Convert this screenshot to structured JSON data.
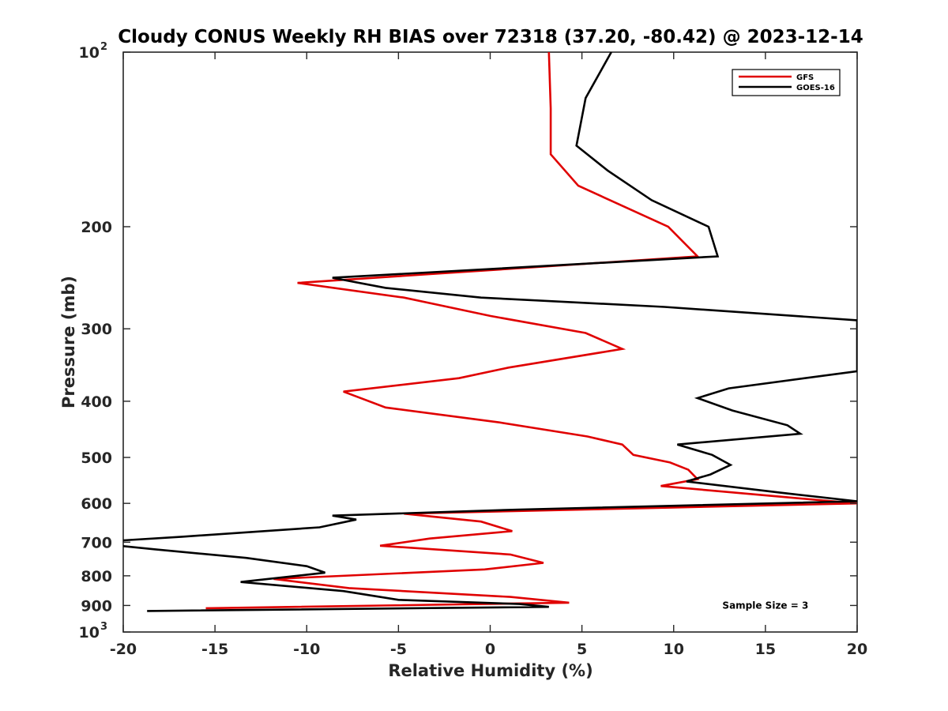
{
  "chart_data": {
    "type": "line",
    "title": "Cloudy CONUS Weekly RH BIAS over 72318 (37.20, -80.42) @ 2023-12-14",
    "xlabel": "Relative Humidity (%)",
    "ylabel": "Pressure (mb)",
    "xlim": [
      -20,
      20
    ],
    "ylim": [
      100,
      1000
    ],
    "y_scale": "log",
    "y_reversed": true,
    "grid": false,
    "legend_position": "top-right",
    "x_ticks": [
      -20,
      -15,
      -10,
      -5,
      0,
      5,
      10,
      15,
      20
    ],
    "x_tick_labels": [
      "-20",
      "-15",
      "-10",
      "-5",
      "0",
      "5",
      "10",
      "15",
      "20"
    ],
    "y_ticks": [
      {
        "value": 100,
        "base": "10",
        "exp": "2"
      },
      {
        "value": 200,
        "label": "200"
      },
      {
        "value": 300,
        "label": "300"
      },
      {
        "value": 400,
        "label": "400"
      },
      {
        "value": 500,
        "label": "500"
      },
      {
        "value": 600,
        "label": "600"
      },
      {
        "value": 700,
        "label": "700"
      },
      {
        "value": 800,
        "label": "800"
      },
      {
        "value": 900,
        "label": "900"
      },
      {
        "value": 1000,
        "base": "10",
        "exp": "3"
      }
    ],
    "series": [
      {
        "name": "GFS",
        "color": "#e00000",
        "points": [
          {
            "x": 3.2,
            "p": 100
          },
          {
            "x": 3.3,
            "p": 125
          },
          {
            "x": 3.3,
            "p": 150
          },
          {
            "x": 4.8,
            "p": 170
          },
          {
            "x": 9.7,
            "p": 200
          },
          {
            "x": 11.3,
            "p": 225
          },
          {
            "x": -10.5,
            "p": 250
          },
          {
            "x": -4.7,
            "p": 265
          },
          {
            "x": 0,
            "p": 285
          },
          {
            "x": 5.2,
            "p": 305
          },
          {
            "x": 7.2,
            "p": 325
          },
          {
            "x": 1,
            "p": 350
          },
          {
            "x": -1.7,
            "p": 365
          },
          {
            "x": -8,
            "p": 385
          },
          {
            "x": -5.7,
            "p": 410
          },
          {
            "x": 0.5,
            "p": 435
          },
          {
            "x": 5.3,
            "p": 460
          },
          {
            "x": 7.2,
            "p": 475
          },
          {
            "x": 7.8,
            "p": 495
          },
          {
            "x": 9.8,
            "p": 510
          },
          {
            "x": 10.8,
            "p": 525
          },
          {
            "x": 11.3,
            "p": 545
          },
          {
            "x": 9.3,
            "p": 560
          },
          {
            "x": 16,
            "p": 585
          },
          {
            "x": 20,
            "p": 600
          },
          {
            "x": 10,
            "p": 610
          },
          {
            "x": -4.7,
            "p": 625
          },
          {
            "x": -0.5,
            "p": 645
          },
          {
            "x": 1.2,
            "p": 670
          },
          {
            "x": -3.3,
            "p": 690
          },
          {
            "x": -6,
            "p": 710
          },
          {
            "x": 1.1,
            "p": 735
          },
          {
            "x": 2.9,
            "p": 760
          },
          {
            "x": -0.3,
            "p": 780
          },
          {
            "x": -11.8,
            "p": 810
          },
          {
            "x": -7.7,
            "p": 840
          },
          {
            "x": 1.1,
            "p": 870
          },
          {
            "x": 4.3,
            "p": 890
          },
          {
            "x": -15.5,
            "p": 910
          }
        ]
      },
      {
        "name": "GOES-16",
        "color": "#000000",
        "points": [
          {
            "x": 6.6,
            "p": 100
          },
          {
            "x": 5.2,
            "p": 120
          },
          {
            "x": 4.7,
            "p": 145
          },
          {
            "x": 6.4,
            "p": 160
          },
          {
            "x": 8.8,
            "p": 180
          },
          {
            "x": 11.9,
            "p": 200
          },
          {
            "x": 12.4,
            "p": 225
          },
          {
            "x": -8.6,
            "p": 245
          },
          {
            "x": -5.7,
            "p": 255
          },
          {
            "x": -0.5,
            "p": 265
          },
          {
            "x": 9.5,
            "p": 275
          },
          {
            "x": 20,
            "p": 290
          },
          {
            "x": 20,
            "p": 355
          },
          {
            "x": 13,
            "p": 380
          },
          {
            "x": 11.3,
            "p": 395
          },
          {
            "x": 13.2,
            "p": 415
          },
          {
            "x": 16.2,
            "p": 440
          },
          {
            "x": 16.9,
            "p": 455
          },
          {
            "x": 10.2,
            "p": 475
          },
          {
            "x": 12.1,
            "p": 495
          },
          {
            "x": 13.1,
            "p": 515
          },
          {
            "x": 12,
            "p": 535
          },
          {
            "x": 10.7,
            "p": 550
          },
          {
            "x": 15.8,
            "p": 575
          },
          {
            "x": 20,
            "p": 595
          },
          {
            "x": 1.6,
            "p": 615
          },
          {
            "x": -8.6,
            "p": 630
          },
          {
            "x": -7.3,
            "p": 640
          },
          {
            "x": -9.3,
            "p": 660
          },
          {
            "x": -16.8,
            "p": 685
          },
          {
            "x": -20,
            "p": 695
          },
          {
            "x": -20.2,
            "p": 710
          },
          {
            "x": -18.3,
            "p": 720
          },
          {
            "x": -13.3,
            "p": 745
          },
          {
            "x": -10,
            "p": 770
          },
          {
            "x": -9,
            "p": 790
          },
          {
            "x": -13.6,
            "p": 820
          },
          {
            "x": -8,
            "p": 850
          },
          {
            "x": -5,
            "p": 880
          },
          {
            "x": 1.6,
            "p": 895
          },
          {
            "x": 3.2,
            "p": 905
          },
          {
            "x": -18.7,
            "p": 920
          }
        ]
      }
    ],
    "annotations": [
      {
        "text": "Sample Size = 3",
        "x": 15,
        "p": 900
      }
    ]
  }
}
